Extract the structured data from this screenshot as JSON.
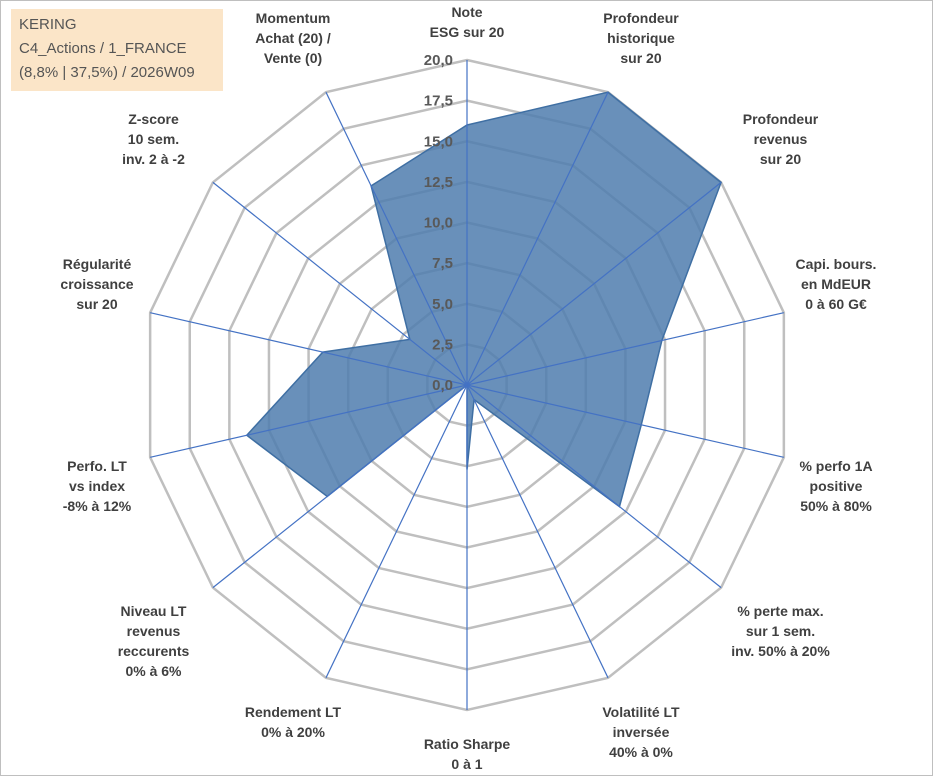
{
  "info": {
    "line1": "KERING",
    "line2": "C4_Actions / 1_FRANCE",
    "line3": "(8,8% | 37,5%) / 2026W09"
  },
  "colors": {
    "fill": "#4f7dae",
    "stroke": "#3f6fa3",
    "spoke": "#4472c4",
    "grid": "#bfbfbf"
  },
  "chart_data": {
    "type": "radar",
    "rlim": [
      0,
      20
    ],
    "ticks": [
      "0,0",
      "2,5",
      "5,0",
      "7,5",
      "10,0",
      "12,5",
      "15,0",
      "17,5",
      "20,0"
    ],
    "categories": [
      {
        "lines": [
          "Note",
          "ESG sur 20"
        ]
      },
      {
        "lines": [
          "Profondeur",
          "historique",
          "sur 20"
        ]
      },
      {
        "lines": [
          "Profondeur",
          "revenus",
          "sur 20"
        ]
      },
      {
        "lines": [
          "Capi. bours.",
          "en MdEUR",
          "0 à 60 G€"
        ]
      },
      {
        "lines": [
          "% perfo 1A",
          "positive",
          "50% à 80%"
        ]
      },
      {
        "lines": [
          "% perte max.",
          "sur 1 sem.",
          "inv. 50% à 20%"
        ]
      },
      {
        "lines": [
          "Volatilité LT",
          "inversée",
          "40% à 0%"
        ]
      },
      {
        "lines": [
          "Ratio Sharpe",
          "0 à 1"
        ]
      },
      {
        "lines": [
          "Rendement LT",
          "0% à 20%"
        ]
      },
      {
        "lines": [
          "Niveau LT",
          "revenus",
          "reccurents",
          "0% à 6%"
        ]
      },
      {
        "lines": [
          "Perfo. LT",
          "vs index",
          "-8% à 12%"
        ]
      },
      {
        "lines": [
          "Régularité",
          "croissance",
          "sur 20"
        ]
      },
      {
        "lines": [
          "Z-score",
          "10 sem.",
          "inv. 2 à -2"
        ]
      },
      {
        "lines": [
          "Momentum",
          "Achat (20) /",
          "Vente (0)"
        ]
      }
    ],
    "series": [
      {
        "name": "KERING",
        "values": [
          16.0,
          20.0,
          20.0,
          12.3,
          11.0,
          12.0,
          1.0,
          5.2,
          0.0,
          11.0,
          13.9,
          9.1,
          4.5,
          13.6
        ]
      }
    ]
  }
}
